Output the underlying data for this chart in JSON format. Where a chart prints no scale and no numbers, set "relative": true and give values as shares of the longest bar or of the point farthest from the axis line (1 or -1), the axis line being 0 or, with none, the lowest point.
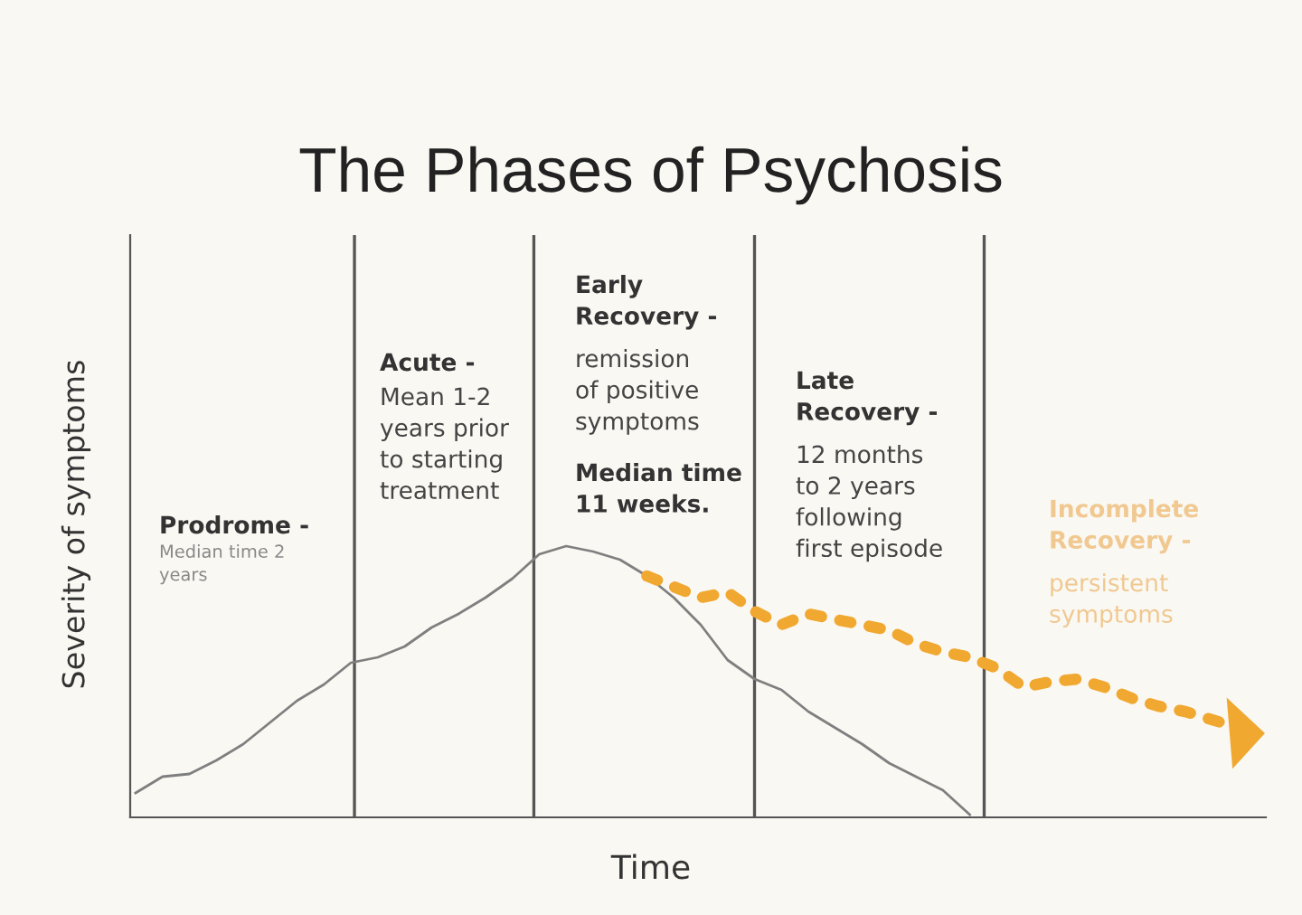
{
  "chart_data": {
    "type": "line",
    "title": "The Phases of Psychosis",
    "xlabel": "Time",
    "ylabel": "Severity of symptoms",
    "relative": true,
    "categories": [
      null,
      null,
      null,
      null,
      null,
      null,
      null,
      null,
      null,
      null,
      null,
      null,
      null,
      null,
      null,
      null,
      null,
      null,
      null,
      null,
      null,
      null,
      null,
      null,
      null,
      null,
      null,
      null,
      null,
      null,
      null,
      null,
      null,
      null,
      null,
      null,
      null,
      null,
      null,
      null,
      null,
      null
    ],
    "series": [
      {
        "color": "#7f7f7f",
        "line_style": "solid",
        "values": [
          0.09,
          0.15,
          0.16,
          0.21,
          0.27,
          0.35,
          0.43,
          0.49,
          0.57,
          0.59,
          0.63,
          0.7,
          0.75,
          0.81,
          0.88,
          0.97,
          1,
          0.98,
          0.95,
          0.89,
          0.81,
          0.71,
          0.58,
          0.51,
          0.47,
          0.39,
          0.33,
          0.27,
          0.2,
          0.15,
          0.1,
          0.01,
          null,
          null,
          null,
          null,
          null,
          null,
          null,
          null,
          null,
          null
        ]
      },
      {
        "color": "#f0a830",
        "line_style": "dotted",
        "values": [
          null,
          null,
          null,
          null,
          null,
          null,
          null,
          null,
          null,
          null,
          null,
          null,
          null,
          null,
          null,
          null,
          null,
          null,
          null,
          0.89,
          0.85,
          0.81,
          0.83,
          0.76,
          0.71,
          0.75,
          0.73,
          0.71,
          0.69,
          0.64,
          0.61,
          0.59,
          0.55,
          0.48,
          0.5,
          0.51,
          0.48,
          0.44,
          0.41,
          0.39,
          0.36,
          0.33
        ]
      }
    ],
    "annotations": [
      "Prodrome -",
      "Median time 2\nyears",
      "Acute -",
      "Mean 1-2\nyears prior\nto starting\ntreatment",
      "Early\nRecovery -",
      "remission\nof positive\nsymptoms",
      "Median time\n11 weeks.",
      "Late\nRecovery -",
      "12 months\nto 2 years\nfollowing\nfirst episode",
      "Incomplete\nRecovery -",
      "persistent\nsymptoms"
    ]
  }
}
